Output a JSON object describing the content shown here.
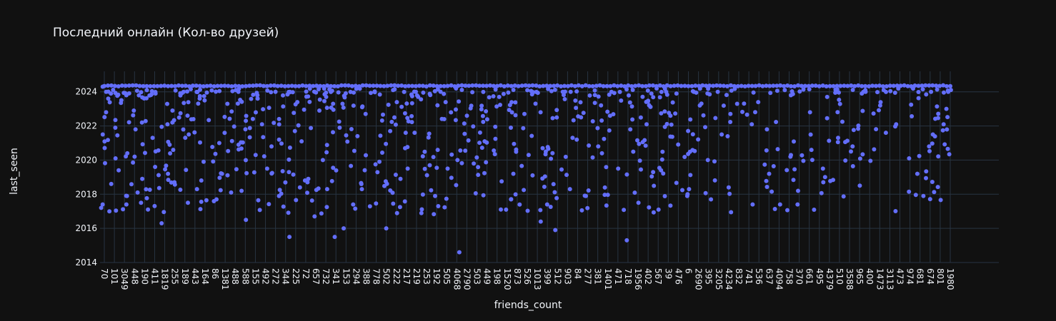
{
  "chart_data": {
    "type": "scatter",
    "title": "Последний онлайн (Кол-во друзей)",
    "xlabel": "friends_count",
    "ylabel": "last_seen",
    "ylim": [
      2014,
      2025.2
    ],
    "y_ticks": [
      2014,
      2016,
      2018,
      2020,
      2022,
      2024
    ],
    "x_type": "category",
    "x_ticks": [
      "70",
      "101",
      "3049",
      "448",
      "190",
      "411",
      "1819",
      "255",
      "189",
      "443",
      "164",
      "86",
      "1381",
      "488",
      "588",
      "155",
      "492",
      "272",
      "344",
      "225",
      "72",
      "657",
      "732",
      "341",
      "153",
      "294",
      "388",
      "778",
      "502",
      "222",
      "217",
      "219",
      "253",
      "192",
      "505",
      "4068",
      "2790",
      "503",
      "449",
      "198",
      "1520",
      "873",
      "526",
      "1013",
      "399",
      "512",
      "903",
      "84",
      "277",
      "381",
      "1401",
      "471",
      "718",
      "1956",
      "402",
      "567",
      "39",
      "476",
      "6",
      "2690",
      "395",
      "3205",
      "4234",
      "832",
      "741",
      "536",
      "637",
      "4094",
      "758",
      "370",
      "661",
      "495",
      "4379",
      "510",
      "3588",
      "965",
      "400",
      "1473",
      "3113",
      "473",
      "974",
      "681",
      "674",
      "801",
      "1980"
    ],
    "grid": true,
    "legend": "none",
    "marker_color": "#636efa",
    "point_count": 1500,
    "points": [
      {
        "x": "70",
        "y": 2024.3
      },
      {
        "x": "70",
        "y": 2022.8
      },
      {
        "x": "70",
        "y": 2021.5
      },
      {
        "x": "70",
        "y": 2017.4
      },
      {
        "x": "70",
        "y": 2017.2
      },
      {
        "x": "101",
        "y": 2023.9
      },
      {
        "x": "101",
        "y": 2021.9
      },
      {
        "x": "101",
        "y": 2019.4
      },
      {
        "x": "101",
        "y": 2018.6
      },
      {
        "x": "101",
        "y": 2020.1
      },
      {
        "x": "3049",
        "y": 2023.8
      },
      {
        "x": "3049",
        "y": 2020.4
      },
      {
        "x": "3049",
        "y": 2017.9
      },
      {
        "x": "3049",
        "y": 2017.4
      },
      {
        "x": "448",
        "y": 2021.8
      },
      {
        "x": "448",
        "y": 2020.2
      },
      {
        "x": "448",
        "y": 2022.9
      },
      {
        "x": "190",
        "y": 2017.1
      },
      {
        "x": "190",
        "y": 2022.2
      },
      {
        "x": "190",
        "y": 2018.9
      },
      {
        "x": "190",
        "y": 2017.5
      },
      {
        "x": "411",
        "y": 2021.3
      },
      {
        "x": "411",
        "y": 2019.6
      },
      {
        "x": "411",
        "y": 2023.9
      },
      {
        "x": "1819",
        "y": 2016.3
      },
      {
        "x": "1819",
        "y": 2022.1
      },
      {
        "x": "1819",
        "y": 2019.2
      },
      {
        "x": "255",
        "y": 2022.9
      },
      {
        "x": "255",
        "y": 2018.7
      },
      {
        "x": "255",
        "y": 2020.6
      },
      {
        "x": "189",
        "y": 2021.5
      },
      {
        "x": "189",
        "y": 2017.5
      },
      {
        "x": "443",
        "y": 2022.4
      },
      {
        "x": "443",
        "y": 2018.3
      },
      {
        "x": "164",
        "y": 2023.5
      },
      {
        "x": "164",
        "y": 2019.9
      },
      {
        "x": "86",
        "y": 2021.0
      },
      {
        "x": "86",
        "y": 2017.7
      },
      {
        "x": "1381",
        "y": 2023.3
      },
      {
        "x": "1381",
        "y": 2019.2
      },
      {
        "x": "488",
        "y": 2020.9
      },
      {
        "x": "488",
        "y": 2018.1
      },
      {
        "x": "588",
        "y": 2016.5
      },
      {
        "x": "588",
        "y": 2022.3
      },
      {
        "x": "155",
        "y": 2020.3
      },
      {
        "x": "155",
        "y": 2023.8
      },
      {
        "x": "492",
        "y": 2022.1
      },
      {
        "x": "492",
        "y": 2019.5
      },
      {
        "x": "272",
        "y": 2020.8
      },
      {
        "x": "272",
        "y": 2017.9
      },
      {
        "x": "344",
        "y": 2015.5
      },
      {
        "x": "344",
        "y": 2019.3
      },
      {
        "x": "225",
        "y": 2021.7
      },
      {
        "x": "225",
        "y": 2023.4
      },
      {
        "x": "72",
        "y": 2018.7
      },
      {
        "x": "72",
        "y": 2021.1
      },
      {
        "x": "657",
        "y": 2016.7
      },
      {
        "x": "657",
        "y": 2022.9
      },
      {
        "x": "732",
        "y": 2020.0
      },
      {
        "x": "341",
        "y": 2015.5
      },
      {
        "x": "341",
        "y": 2021.9
      },
      {
        "x": "153",
        "y": 2016.0
      },
      {
        "x": "153",
        "y": 2023.3
      },
      {
        "x": "294",
        "y": 2017.4
      },
      {
        "x": "294",
        "y": 2021.4
      },
      {
        "x": "388",
        "y": 2018.3
      },
      {
        "x": "388",
        "y": 2023.1
      },
      {
        "x": "778",
        "y": 2019.9
      },
      {
        "x": "502",
        "y": 2016.0
      },
      {
        "x": "502",
        "y": 2021.7
      },
      {
        "x": "222",
        "y": 2022.5
      },
      {
        "x": "222",
        "y": 2018.9
      },
      {
        "x": "217",
        "y": 2020.7
      },
      {
        "x": "219",
        "y": 2021.6
      },
      {
        "x": "253",
        "y": 2019.7
      },
      {
        "x": "192",
        "y": 2020.6
      },
      {
        "x": "192",
        "y": 2017.9
      },
      {
        "x": "505",
        "y": 2019.5
      },
      {
        "x": "505",
        "y": 2022.4
      },
      {
        "x": "4068",
        "y": 2014.6
      },
      {
        "x": "4068",
        "y": 2020.0
      },
      {
        "x": "2790",
        "y": 2022.6
      },
      {
        "x": "503",
        "y": 2019.8
      },
      {
        "x": "449",
        "y": 2021.1
      },
      {
        "x": "198",
        "y": 2017.1
      },
      {
        "x": "198",
        "y": 2023.7
      },
      {
        "x": "1520",
        "y": 2017.7
      },
      {
        "x": "1520",
        "y": 2021.9
      },
      {
        "x": "873",
        "y": 2019.2
      },
      {
        "x": "526",
        "y": 2022.7
      },
      {
        "x": "1013",
        "y": 2016.4
      },
      {
        "x": "399",
        "y": 2017.4
      },
      {
        "x": "399",
        "y": 2020.5
      },
      {
        "x": "512",
        "y": 2015.9
      },
      {
        "x": "512",
        "y": 2022.5
      },
      {
        "x": "903",
        "y": 2018.3
      },
      {
        "x": "84",
        "y": 2021.2
      },
      {
        "x": "277",
        "y": 2017.9
      },
      {
        "x": "381",
        "y": 2020.4
      },
      {
        "x": "1401",
        "y": 2022.6
      },
      {
        "x": "471",
        "y": 2019.5
      },
      {
        "x": "718",
        "y": 2015.3
      },
      {
        "x": "718",
        "y": 2021.8
      },
      {
        "x": "1956",
        "y": 2017.5
      },
      {
        "x": "402",
        "y": 2022.1
      },
      {
        "x": "567",
        "y": 2019.4
      },
      {
        "x": "39",
        "y": 2022.6
      },
      {
        "x": "476",
        "y": 2023.9
      },
      {
        "x": "6",
        "y": 2017.9
      },
      {
        "x": "6",
        "y": 2018.3
      },
      {
        "x": "2690",
        "y": 2023.2
      },
      {
        "x": "395",
        "y": 2017.7
      },
      {
        "x": "395",
        "y": 2020.0
      },
      {
        "x": "3205",
        "y": 2021.5
      },
      {
        "x": "4234",
        "y": 2018.4
      },
      {
        "x": "4234",
        "y": 2022.7
      },
      {
        "x": "832",
        "y": 2023.3
      },
      {
        "x": "741",
        "y": 2017.4
      },
      {
        "x": "741",
        "y": 2022.1
      },
      {
        "x": "536",
        "y": 2023.4
      },
      {
        "x": "637",
        "y": 2019.2
      },
      {
        "x": "637",
        "y": 2021.8
      },
      {
        "x": "4094",
        "y": 2017.4
      },
      {
        "x": "758",
        "y": 2020.2
      },
      {
        "x": "370",
        "y": 2018.2
      },
      {
        "x": "370",
        "y": 2017.4
      },
      {
        "x": "661",
        "y": 2020.6
      },
      {
        "x": "661",
        "y": 2022.8
      },
      {
        "x": "495",
        "y": 2019.5
      },
      {
        "x": "4379",
        "y": 2023.7
      },
      {
        "x": "510",
        "y": 2021.3
      },
      {
        "x": "3588",
        "y": 2020.8
      },
      {
        "x": "965",
        "y": 2018.5
      },
      {
        "x": "400",
        "y": 2024.0
      },
      {
        "x": "1473",
        "y": 2023.2
      },
      {
        "x": "3113",
        "y": 2021.6
      },
      {
        "x": "473",
        "y": 2022.1
      },
      {
        "x": "974",
        "y": 2020.1
      },
      {
        "x": "681",
        "y": 2019.2
      },
      {
        "x": "681",
        "y": 2017.9
      },
      {
        "x": "674",
        "y": 2021.5
      },
      {
        "x": "674",
        "y": 2020.8
      },
      {
        "x": "801",
        "y": 2022.1
      },
      {
        "x": "1980",
        "y": 2024.0
      },
      {
        "x": "1980",
        "y": 2023.0
      }
    ]
  }
}
